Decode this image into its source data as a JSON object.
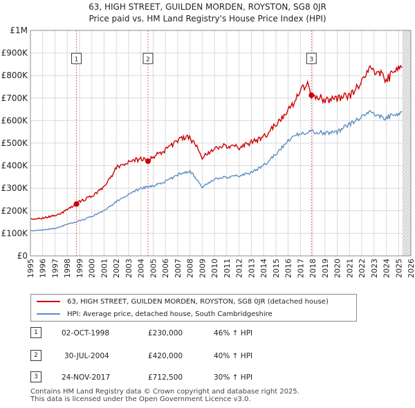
{
  "title_line1": "63, HIGH STREET, GUILDEN MORDEN, ROYSTON, SG8 0JR",
  "title_line2": "Price paid vs. HM Land Registry's House Price Index (HPI)",
  "chart_data": {
    "type": "line",
    "title": "63, HIGH STREET, GUILDEN MORDEN, ROYSTON, SG8 0JR — Price paid vs. HM Land Registry's House Price Index (HPI)",
    "xlim": [
      1995,
      2026
    ],
    "ylim": [
      0,
      1000000
    ],
    "x_ticks": [
      "1995",
      "1996",
      "1997",
      "1998",
      "1999",
      "2000",
      "2001",
      "2002",
      "2003",
      "2004",
      "2005",
      "2006",
      "2007",
      "2008",
      "2009",
      "2010",
      "2011",
      "2012",
      "2013",
      "2014",
      "2015",
      "2016",
      "2017",
      "2018",
      "2019",
      "2020",
      "2021",
      "2022",
      "2023",
      "2024",
      "2025",
      "2026"
    ],
    "y_ticks": [
      {
        "value": 0,
        "label": "£0"
      },
      {
        "value": 100000,
        "label": "£100K"
      },
      {
        "value": 200000,
        "label": "£200K"
      },
      {
        "value": 300000,
        "label": "£300K"
      },
      {
        "value": 400000,
        "label": "£400K"
      },
      {
        "value": 500000,
        "label": "£500K"
      },
      {
        "value": 600000,
        "label": "£600K"
      },
      {
        "value": 700000,
        "label": "£700K"
      },
      {
        "value": 800000,
        "label": "£800K"
      },
      {
        "value": 900000,
        "label": "£900K"
      },
      {
        "value": 1000000,
        "label": "£1M"
      }
    ],
    "series": [
      {
        "name": "63, HIGH STREET, GUILDEN MORDEN, ROYSTON, SG8 0JR (detached house)",
        "color": "#cc0000",
        "x": [
          1995,
          1996,
          1997,
          1997.5,
          1998,
          1998.75,
          1999,
          2000,
          2001,
          2001.5,
          2002,
          2002.5,
          2003,
          2004,
          2004.58,
          2005,
          2006,
          2007,
          2007.8,
          2008.4,
          2009,
          2010,
          2011,
          2012,
          2013,
          2014,
          2015,
          2016,
          2016.8,
          2017.5,
          2017.9,
          2018.5,
          2019,
          2020,
          2021,
          2022,
          2022.6,
          2023,
          2023.8,
          2024,
          2025,
          2025.3
        ],
        "values": [
          165000,
          167000,
          180000,
          190000,
          205000,
          230000,
          240000,
          265000,
          305000,
          345000,
          390000,
          405000,
          420000,
          430000,
          420000,
          440000,
          470000,
          515000,
          530000,
          500000,
          435000,
          475000,
          490000,
          480000,
          505000,
          525000,
          580000,
          640000,
          710000,
          765000,
          712500,
          705000,
          690000,
          700000,
          710000,
          770000,
          830000,
          820000,
          800000,
          780000,
          830000,
          835000
        ]
      },
      {
        "name": "HPI: Average price, detached house, South Cambridgeshire",
        "color": "#5b8ec4",
        "x": [
          1995,
          1996,
          1997,
          1998,
          1999,
          2000,
          2001,
          2002,
          2003,
          2004,
          2005,
          2006,
          2007,
          2008,
          2008.5,
          2009,
          2010,
          2011,
          2012,
          2013,
          2014,
          2015,
          2016,
          2017,
          2018,
          2019,
          2020,
          2021,
          2022,
          2022.6,
          2023,
          2023.8,
          2024,
          2025,
          2025.3
        ],
        "values": [
          112000,
          115000,
          122000,
          140000,
          155000,
          175000,
          200000,
          240000,
          275000,
          300000,
          310000,
          330000,
          360000,
          375000,
          345000,
          305000,
          340000,
          350000,
          355000,
          370000,
          400000,
          450000,
          510000,
          545000,
          550000,
          545000,
          550000,
          585000,
          615000,
          638000,
          630000,
          610000,
          615000,
          625000,
          640000
        ]
      }
    ],
    "annotations": [
      {
        "label": "1",
        "x": 1998.75
      },
      {
        "label": "2",
        "x": 2004.58
      },
      {
        "label": "3",
        "x": 2017.9
      }
    ],
    "sale_points": [
      {
        "x": 1998.75,
        "y": 230000
      },
      {
        "x": 2004.58,
        "y": 420000
      },
      {
        "x": 2017.9,
        "y": 712500
      }
    ],
    "forecast_start": 2025.3
  },
  "legend": {
    "items": [
      {
        "label": "63, HIGH STREET, GUILDEN MORDEN, ROYSTON, SG8 0JR (detached house)",
        "color": "#cc0000"
      },
      {
        "label": "HPI: Average price, detached house, South Cambridgeshire",
        "color": "#5b8ec4"
      }
    ]
  },
  "sales": [
    {
      "num": "1",
      "date": "02-OCT-1998",
      "price": "£230,000",
      "hpi": "46% ↑ HPI"
    },
    {
      "num": "2",
      "date": "30-JUL-2004",
      "price": "£420,000",
      "hpi": "40% ↑ HPI"
    },
    {
      "num": "3",
      "date": "24-NOV-2017",
      "price": "£712,500",
      "hpi": "30% ↑ HPI"
    }
  ],
  "footer": {
    "line1": "Contains HM Land Registry data © Crown copyright and database right 2025.",
    "line2": "This data is licensed under the Open Government Licence v3.0."
  }
}
